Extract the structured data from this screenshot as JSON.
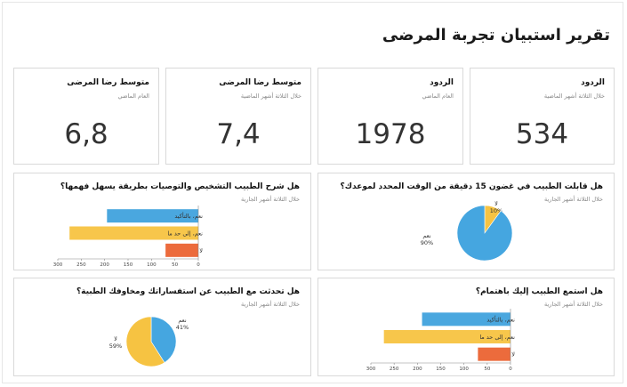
{
  "page": {
    "title": "تقرير استبيان تجربة المرضى"
  },
  "kpis": [
    {
      "title": "الردود",
      "subtitle": "خلال الثلاثة أشهر الماضية",
      "value": "534"
    },
    {
      "title": "الردود",
      "subtitle": "العام الماضي",
      "value": "1978"
    },
    {
      "title": "متوسط رضا المرضى",
      "subtitle": "خلال الثلاثة أشهر الماضية",
      "value": "7,4"
    },
    {
      "title": "متوسط رضا المرضى",
      "subtitle": "العام الماضي",
      "value": "6,8"
    }
  ],
  "chart_data": [
    {
      "type": "pie",
      "title": "هل قابلت الطبيب في غضون 15 دقيقة من الوقت المحدد لموعدك؟",
      "subtitle": "خلال الثلاثة أشهر الجارية",
      "slices": [
        {
          "label": "لا",
          "value_label": "10%",
          "value": 10,
          "color": "#f6c342"
        },
        {
          "label": "نعم",
          "value_label": "90%",
          "value": 90,
          "color": "#45a6e0"
        }
      ]
    },
    {
      "type": "bar",
      "orientation": "horizontal",
      "title": "هل شرح الطبيب التشخيص والتوصيات بطريقة يسهل فهمها؟",
      "subtitle": "خلال الثلاثة أشهر الجارية",
      "categories": [
        "نعم، بالتأكيد",
        "نعم، إلى حد ما",
        "لا"
      ],
      "values": [
        195,
        275,
        70
      ],
      "colors": [
        "#4aa7df",
        "#f7c64b",
        "#ec6b3c"
      ],
      "ticks": [
        "0",
        "50",
        "100",
        "150",
        "200",
        "250",
        "300"
      ],
      "xlim": [
        0,
        300
      ]
    },
    {
      "type": "bar",
      "orientation": "horizontal",
      "title": "هل استمع الطبيب إليك باهتمام؟",
      "subtitle": "خلال الثلاثة أشهر الجارية",
      "categories": [
        "نعم، بالتأكيد",
        "نعم، إلى حد ما",
        "لا"
      ],
      "values": [
        190,
        272,
        70
      ],
      "colors": [
        "#4aa7df",
        "#f7c64b",
        "#ec6b3c"
      ],
      "ticks": [
        "0",
        "50",
        "100",
        "150",
        "200",
        "250",
        "300"
      ],
      "xlim": [
        0,
        300
      ]
    },
    {
      "type": "pie",
      "title": "هل تحدثت مع الطبيب عن استفساراتك ومخاوفك الطبية؟",
      "subtitle": "خلال الثلاثة أشهر الجارية",
      "slices": [
        {
          "label": "نعم",
          "value_label": "41%",
          "value": 41,
          "color": "#45a6e0"
        },
        {
          "label": "لا",
          "value_label": "59%",
          "value": 59,
          "color": "#f6c342"
        }
      ]
    }
  ]
}
